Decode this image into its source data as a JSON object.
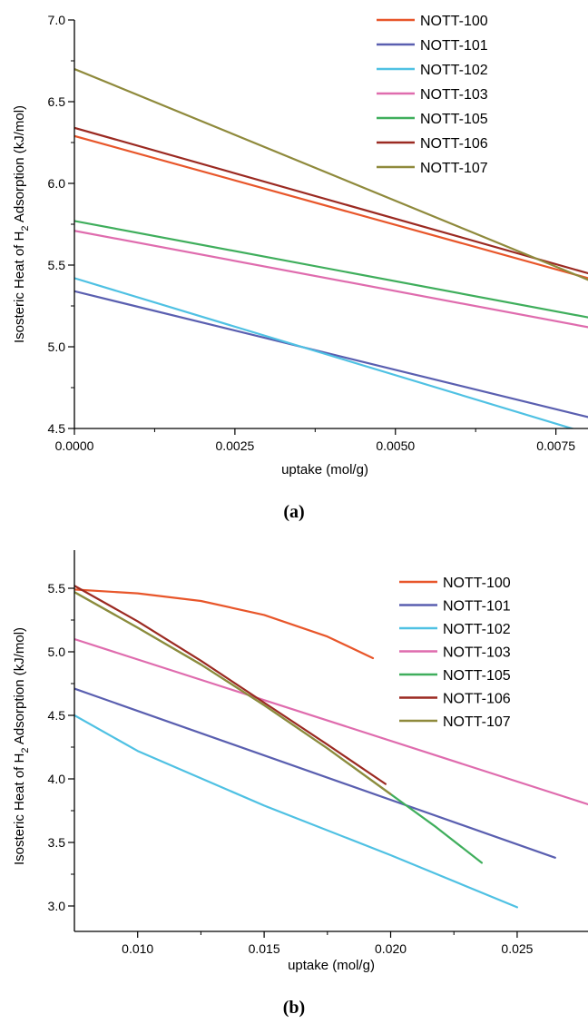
{
  "chart_data": [
    {
      "type": "line",
      "panel_label": "(a)",
      "xlabel": "uptake (mol/g)",
      "ylabel_main": "Isosteric Heat of H",
      "ylabel_sub": "2",
      "ylabel_tail": " Adsorption (kJ/mol)",
      "xlim": [
        0,
        0.008
      ],
      "ylim": [
        4.5,
        7.0
      ],
      "xticks": [
        0,
        0.0025,
        0.005,
        0.0075
      ],
      "xtick_labels": [
        "0.0000",
        "0.0025",
        "0.0050",
        "0.0075"
      ],
      "yticks": [
        4.5,
        5.0,
        5.5,
        6.0,
        6.5,
        7.0
      ],
      "ytick_labels": [
        "4.5",
        "5.0",
        "5.5",
        "6.0",
        "6.5",
        "7.0"
      ],
      "legend_position": "top-right",
      "series": [
        {
          "name": "NOTT-100",
          "color": "#e8562a",
          "x": [
            0,
            0.008
          ],
          "y": [
            6.29,
            5.42
          ]
        },
        {
          "name": "NOTT-101",
          "color": "#5a5fb0",
          "x": [
            0,
            0.008
          ],
          "y": [
            5.34,
            4.57
          ]
        },
        {
          "name": "NOTT-102",
          "color": "#4fc1e3",
          "x": [
            0,
            0.008
          ],
          "y": [
            5.42,
            4.47
          ]
        },
        {
          "name": "NOTT-103",
          "color": "#df6cae",
          "x": [
            0,
            0.008
          ],
          "y": [
            5.71,
            5.12
          ]
        },
        {
          "name": "NOTT-105",
          "color": "#3fae5c",
          "x": [
            0,
            0.008
          ],
          "y": [
            5.77,
            5.18
          ]
        },
        {
          "name": "NOTT-106",
          "color": "#9b2a22",
          "x": [
            0,
            0.008
          ],
          "y": [
            6.34,
            5.45
          ]
        },
        {
          "name": "NOTT-107",
          "color": "#8f8a3c",
          "x": [
            0,
            0.008
          ],
          "y": [
            6.7,
            5.41
          ]
        }
      ]
    },
    {
      "type": "line",
      "panel_label": "(b)",
      "xlabel": "uptake (mol/g)",
      "ylabel_main": "Isosteric Heat of H",
      "ylabel_sub": "2",
      "ylabel_tail": " Adsorption (kJ/mol)",
      "xlim": [
        0.0075,
        0.0278
      ],
      "ylim": [
        2.8,
        5.8
      ],
      "xticks": [
        0.01,
        0.015,
        0.02,
        0.025
      ],
      "xtick_labels": [
        "0.010",
        "0.015",
        "0.020",
        "0.025"
      ],
      "yticks": [
        3.0,
        3.5,
        4.0,
        4.5,
        5.0,
        5.5
      ],
      "ytick_labels": [
        "3.0",
        "3.5",
        "4.0",
        "4.5",
        "5.0",
        "5.5"
      ],
      "legend_position": "top-right",
      "series": [
        {
          "name": "NOTT-100",
          "color": "#e8562a",
          "x": [
            0.0075,
            0.01,
            0.0125,
            0.015,
            0.0175,
            0.0193
          ],
          "y": [
            5.49,
            5.46,
            5.4,
            5.29,
            5.12,
            4.95
          ]
        },
        {
          "name": "NOTT-101",
          "color": "#5a5fb0",
          "x": [
            0.0075,
            0.0265
          ],
          "y": [
            4.71,
            3.38
          ]
        },
        {
          "name": "NOTT-102",
          "color": "#4fc1e3",
          "x": [
            0.0075,
            0.01,
            0.015,
            0.02,
            0.025
          ],
          "y": [
            4.5,
            4.22,
            3.79,
            3.4,
            2.99
          ]
        },
        {
          "name": "NOTT-103",
          "color": "#df6cae",
          "x": [
            0.0075,
            0.0278
          ],
          "y": [
            5.1,
            3.8
          ]
        },
        {
          "name": "NOTT-105",
          "color": "#3fae5c",
          "x": [
            0.0075,
            0.01,
            0.0125,
            0.015,
            0.0175,
            0.02,
            0.0218,
            0.0236
          ],
          "y": [
            5.47,
            5.19,
            4.9,
            4.58,
            4.24,
            3.88,
            3.62,
            3.34
          ]
        },
        {
          "name": "NOTT-106",
          "color": "#9b2a22",
          "x": [
            0.0075,
            0.01,
            0.0125,
            0.015,
            0.0175,
            0.0198
          ],
          "y": [
            5.52,
            5.24,
            4.93,
            4.6,
            4.27,
            3.96
          ]
        },
        {
          "name": "NOTT-107",
          "color": "#8f8a3c",
          "x": [
            0.0075,
            0.01,
            0.0125,
            0.015,
            0.0175,
            0.02
          ],
          "y": [
            5.47,
            5.19,
            4.9,
            4.58,
            4.24,
            3.88
          ]
        }
      ]
    }
  ]
}
